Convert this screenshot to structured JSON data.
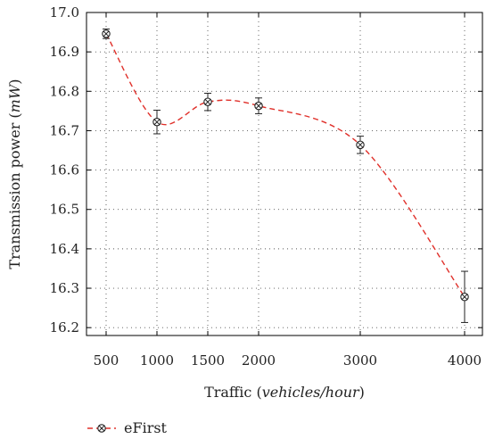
{
  "chart_data": {
    "type": "line",
    "x": [
      500,
      1000,
      1500,
      2000,
      3000,
      4000
    ],
    "x_ticks": [
      "500",
      "1000",
      "1500",
      "2000",
      "3000",
      "4000"
    ],
    "y_ticks": [
      "16.2",
      "16.3",
      "16.4",
      "16.5",
      "16.6",
      "16.7",
      "16.8",
      "16.9",
      "17.0"
    ],
    "xlabel_prefix": "Traffic (",
    "xlabel_unit": "vehicles/hour",
    "xlabel_suffix": ")",
    "ylabel_prefix": "Transmission power (",
    "ylabel_unit": "mW",
    "ylabel_suffix": ")",
    "ylim": [
      16.18,
      17.0
    ],
    "grid": true,
    "legend_position": "bottom-left",
    "series": [
      {
        "name": "eFirst",
        "color": "#e0302a",
        "marker": "circle-x",
        "line_style": "dashed",
        "values": [
          16.946,
          16.722,
          16.773,
          16.763,
          16.664,
          16.278
        ],
        "error": [
          0.012,
          0.03,
          0.022,
          0.02,
          0.022,
          0.065
        ]
      }
    ]
  }
}
